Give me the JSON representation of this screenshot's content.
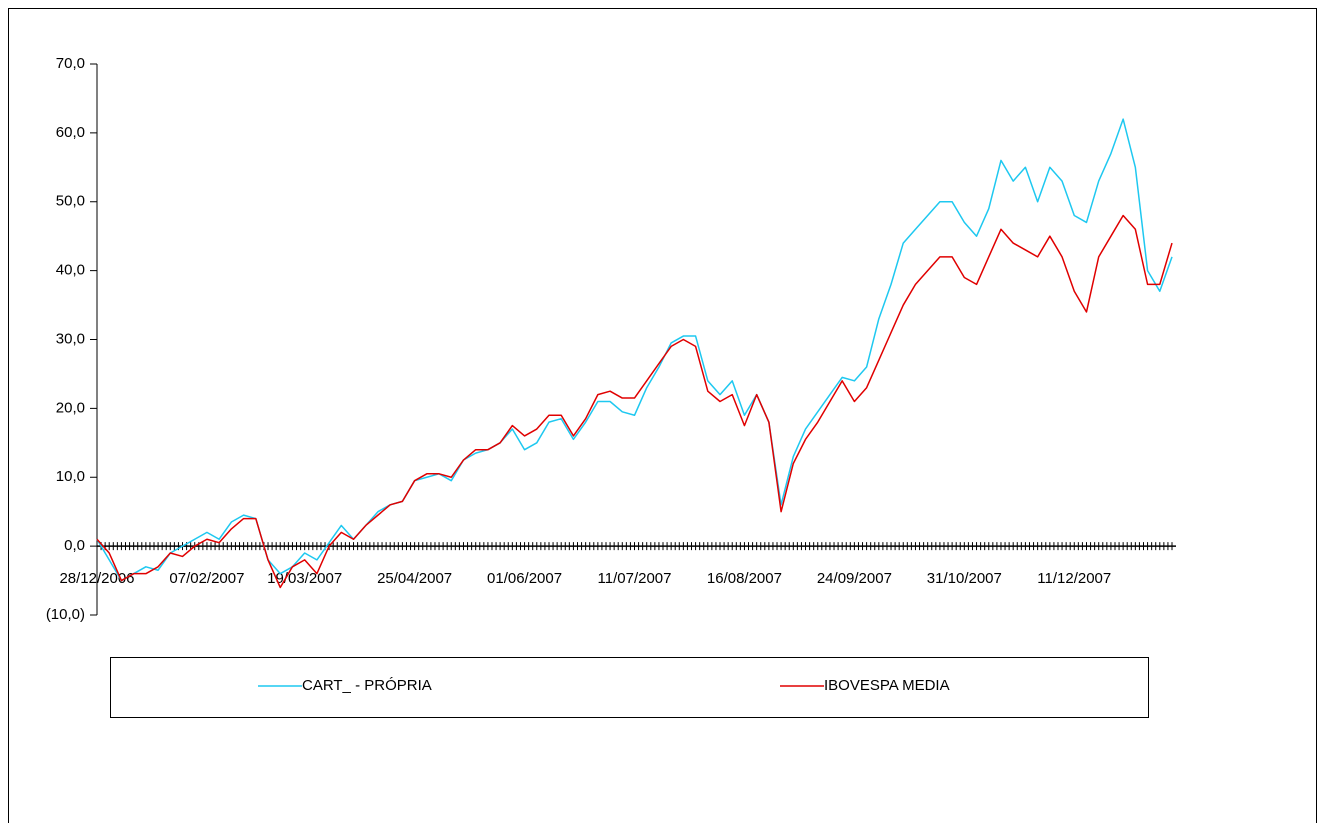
{
  "chart_data": {
    "type": "line",
    "categories": [
      "28/12/2006",
      null,
      null,
      null,
      null,
      null,
      null,
      null,
      null,
      "07/02/2007",
      null,
      null,
      null,
      null,
      null,
      null,
      null,
      "19/03/2007",
      null,
      null,
      null,
      null,
      null,
      null,
      null,
      null,
      "25/04/2007",
      null,
      null,
      null,
      null,
      null,
      null,
      null,
      null,
      "01/06/2007",
      null,
      null,
      null,
      null,
      null,
      null,
      null,
      null,
      "11/07/2007",
      null,
      null,
      null,
      null,
      null,
      null,
      null,
      null,
      "16/08/2007",
      null,
      null,
      null,
      null,
      null,
      null,
      null,
      null,
      "24/09/2007",
      null,
      null,
      null,
      null,
      null,
      null,
      null,
      null,
      "31/10/2007",
      null,
      null,
      null,
      null,
      null,
      null,
      null,
      null,
      "11/12/2007",
      null,
      null,
      null,
      null,
      null,
      null,
      null,
      null
    ],
    "series": [
      {
        "name": "CART_ - PRÓPRIA",
        "color": "#1ec8f0",
        "values": [
          1,
          -2,
          -5,
          -4,
          -3,
          -3.5,
          -1,
          0,
          1,
          2,
          1,
          3.5,
          4.5,
          4,
          -2,
          -4,
          -3,
          -1,
          -2,
          0.5,
          3,
          1,
          3,
          5,
          6,
          6.5,
          9.5,
          10,
          10.5,
          9.5,
          12.5,
          13.5,
          14,
          15,
          17,
          14,
          15,
          18,
          18.5,
          15.5,
          18,
          21,
          21,
          19.5,
          19,
          23,
          26,
          29.5,
          30.5,
          30.5,
          24,
          22,
          24,
          19,
          22,
          18,
          6,
          13,
          17,
          19.5,
          22,
          24.5,
          24,
          26,
          33,
          38,
          44,
          46,
          48,
          50,
          50,
          47,
          45,
          49,
          56,
          53,
          55,
          50,
          55,
          53,
          48,
          47,
          53,
          57,
          62,
          55,
          40,
          37,
          42
        ]
      },
      {
        "name": "IBOVESPA MEDIA",
        "color": "#e00000",
        "values": [
          1,
          -1,
          -5,
          -4,
          -4,
          -3,
          -1,
          -1.5,
          0,
          1,
          0.5,
          2.5,
          4,
          4,
          -2,
          -6,
          -3,
          -2,
          -4,
          0,
          2,
          1,
          3,
          4.5,
          6,
          6.5,
          9.5,
          10.5,
          10.5,
          10,
          12.5,
          14,
          14,
          15,
          17.5,
          16,
          17,
          19,
          19,
          16,
          18.5,
          22,
          22.5,
          21.5,
          21.5,
          24,
          26.5,
          29,
          30,
          29,
          22.5,
          21,
          22,
          17.5,
          22,
          18,
          5,
          12,
          15.5,
          18,
          21,
          24,
          21,
          23,
          27,
          31,
          35,
          38,
          40,
          42,
          42,
          39,
          38,
          42,
          46,
          44,
          43,
          42,
          45,
          42,
          37,
          34,
          42,
          45,
          48,
          46,
          38,
          38,
          44
        ]
      }
    ],
    "ylim": [
      -10,
      70
    ],
    "yticks": [
      {
        "value": -10,
        "label": "(10,0)"
      },
      {
        "value": 0,
        "label": "0,0"
      },
      {
        "value": 10,
        "label": "10,0"
      },
      {
        "value": 20,
        "label": "20,0"
      },
      {
        "value": 30,
        "label": "30,0"
      },
      {
        "value": 40,
        "label": "40,0"
      },
      {
        "value": 50,
        "label": "50,0"
      },
      {
        "value": 60,
        "label": "60,0"
      },
      {
        "value": 70,
        "label": "70,0"
      }
    ],
    "negative_tick_color": "#e00000",
    "grid": false,
    "legend": "bottom"
  }
}
